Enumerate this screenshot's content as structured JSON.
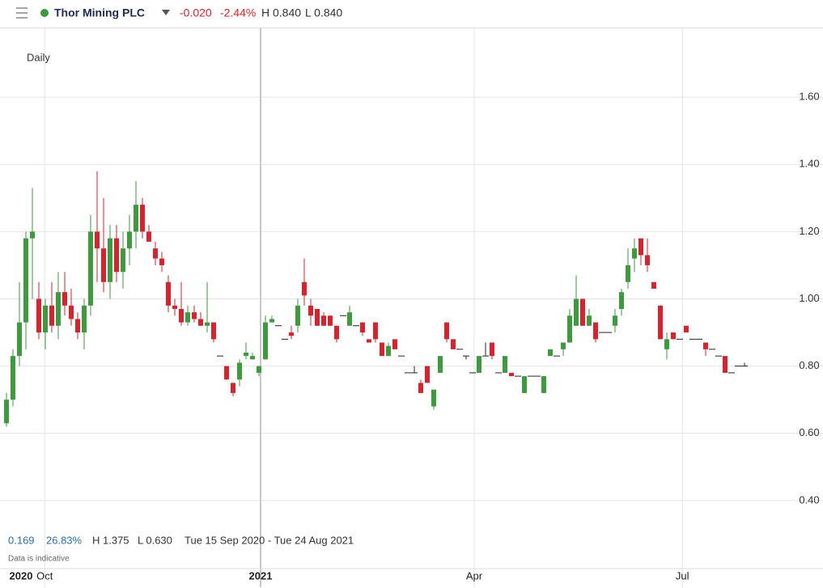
{
  "header": {
    "title": "Thor Mining PLC",
    "change": "-0.020",
    "change_pct": "-2.44%",
    "high": "H 0.840",
    "low": "L 0.840"
  },
  "stats": {
    "change": "0.169",
    "change_pct": "26.83%",
    "high": "H 1.375",
    "low": "L 0.630",
    "range": "Tue 15 Sep 2020 - Tue 24 Aug 2021",
    "note": "Data is indicative"
  },
  "chart_data": {
    "type": "candlestick",
    "interval": "Daily",
    "up_color": "#3d9a3d",
    "down_color": "#d9222e",
    "flat_color": "#222222",
    "ylim": [
      0.2,
      1.8
    ],
    "yticks": [
      {
        "value": 0.4,
        "label": "0.40"
      },
      {
        "value": 0.6,
        "label": "0.60"
      },
      {
        "value": 0.8,
        "label": "0.80"
      },
      {
        "value": 1.0,
        "label": "1.00"
      },
      {
        "value": 1.2,
        "label": "1.20"
      },
      {
        "value": 1.4,
        "label": "1.40"
      },
      {
        "value": 1.6,
        "label": "1.60"
      }
    ],
    "xlim": [
      -1,
      125.5
    ],
    "xticks": [
      {
        "value": 2.25,
        "label": "2020"
      },
      {
        "value": 5.9,
        "label": "Oct"
      },
      {
        "value": 39.25,
        "label": "2021"
      },
      {
        "value": 72.25,
        "label": "Apr"
      },
      {
        "value": 104.4,
        "label": "Jul"
      }
    ],
    "grid": true,
    "candles": [
      [
        0.63,
        0.72,
        0.62,
        0.7
      ],
      [
        0.7,
        0.85,
        0.68,
        0.83
      ],
      [
        0.83,
        1.05,
        0.8,
        0.93
      ],
      [
        0.93,
        1.2,
        0.85,
        1.18
      ],
      [
        1.18,
        1.33,
        1.0,
        1.2
      ],
      [
        1.0,
        1.05,
        0.88,
        0.9
      ],
      [
        0.9,
        1.0,
        0.85,
        0.98
      ],
      [
        0.98,
        1.05,
        0.9,
        0.92
      ],
      [
        0.92,
        1.08,
        0.88,
        1.02
      ],
      [
        1.02,
        1.08,
        0.95,
        0.98
      ],
      [
        0.98,
        1.03,
        0.92,
        0.94
      ],
      [
        0.94,
        0.96,
        0.88,
        0.9
      ],
      [
        0.9,
        1.0,
        0.85,
        0.98
      ],
      [
        0.98,
        1.25,
        0.95,
        1.2
      ],
      [
        1.2,
        1.38,
        1.05,
        1.15
      ],
      [
        1.15,
        1.3,
        1.02,
        1.05
      ],
      [
        1.05,
        1.22,
        1.0,
        1.18
      ],
      [
        1.18,
        1.22,
        1.05,
        1.08
      ],
      [
        1.08,
        1.2,
        1.03,
        1.15
      ],
      [
        1.15,
        1.25,
        1.1,
        1.2
      ],
      [
        1.2,
        1.35,
        1.15,
        1.28
      ],
      [
        1.28,
        1.3,
        1.18,
        1.2
      ],
      [
        1.2,
        1.22,
        1.17,
        1.17
      ],
      [
        1.15,
        1.17,
        1.1,
        1.12
      ],
      [
        1.12,
        1.14,
        1.08,
        1.1
      ],
      [
        1.05,
        1.07,
        0.96,
        0.98
      ],
      [
        0.98,
        1.0,
        0.95,
        0.97
      ],
      [
        0.97,
        1.05,
        0.92,
        0.93
      ],
      [
        0.93,
        0.98,
        0.92,
        0.96
      ],
      [
        0.96,
        0.98,
        0.93,
        0.94
      ],
      [
        0.94,
        0.96,
        0.92,
        0.92
      ],
      [
        0.92,
        1.05,
        0.9,
        0.93
      ],
      [
        0.93,
        0.93,
        0.87,
        0.88
      ],
      [
        0.83,
        0.83,
        0.83,
        0.83
      ],
      [
        0.8,
        0.8,
        0.76,
        0.76
      ],
      [
        0.75,
        0.75,
        0.71,
        0.72
      ],
      [
        0.76,
        0.82,
        0.74,
        0.81
      ],
      [
        0.83,
        0.87,
        0.82,
        0.84
      ],
      [
        0.82,
        0.84,
        0.82,
        0.83
      ],
      [
        0.78,
        0.8,
        0.77,
        0.8
      ],
      [
        0.82,
        0.95,
        0.82,
        0.93
      ],
      [
        0.93,
        0.95,
        0.93,
        0.94
      ],
      [
        0.92,
        0.92,
        0.92,
        0.92
      ],
      [
        0.88,
        0.88,
        0.88,
        0.88
      ],
      [
        0.9,
        0.92,
        0.88,
        0.89
      ],
      [
        0.92,
        1.0,
        0.9,
        0.98
      ],
      [
        1.05,
        1.12,
        0.98,
        1.01
      ],
      [
        0.98,
        1.0,
        0.92,
        0.95
      ],
      [
        0.97,
        0.97,
        0.92,
        0.92
      ],
      [
        0.95,
        0.96,
        0.92,
        0.92
      ],
      [
        0.95,
        0.95,
        0.92,
        0.92
      ],
      [
        0.92,
        0.92,
        0.87,
        0.88
      ],
      [
        0.95,
        0.95,
        0.95,
        0.95
      ],
      [
        0.92,
        0.98,
        0.92,
        0.96
      ],
      [
        0.92,
        0.92,
        0.92,
        0.92
      ],
      [
        0.93,
        0.93,
        0.89,
        0.9
      ],
      [
        0.88,
        0.88,
        0.87,
        0.87
      ],
      [
        0.93,
        0.93,
        0.87,
        0.88
      ],
      [
        0.87,
        0.87,
        0.83,
        0.83
      ],
      [
        0.83,
        0.87,
        0.83,
        0.86
      ],
      [
        0.88,
        0.88,
        0.85,
        0.85
      ],
      [
        0.83,
        0.83,
        0.83,
        0.83
      ],
      [
        0.78,
        0.78,
        0.78,
        0.78
      ],
      [
        0.78,
        0.8,
        0.78,
        0.78
      ],
      [
        0.75,
        0.76,
        0.72,
        0.72
      ],
      [
        0.8,
        0.8,
        0.75,
        0.75
      ],
      [
        0.68,
        0.73,
        0.67,
        0.73
      ],
      [
        0.78,
        0.83,
        0.78,
        0.83
      ],
      [
        0.93,
        0.93,
        0.87,
        0.88
      ],
      [
        0.88,
        0.88,
        0.85,
        0.85
      ],
      [
        0.85,
        0.85,
        0.85,
        0.85
      ],
      [
        0.83,
        0.83,
        0.82,
        0.83
      ],
      [
        0.78,
        0.78,
        0.78,
        0.78
      ],
      [
        0.78,
        0.83,
        0.78,
        0.83
      ],
      [
        0.83,
        0.87,
        0.83,
        0.83
      ],
      [
        0.87,
        0.87,
        0.82,
        0.83
      ],
      [
        0.78,
        0.78,
        0.78,
        0.78
      ],
      [
        0.78,
        0.83,
        0.78,
        0.83
      ],
      [
        0.78,
        0.78,
        0.77,
        0.77
      ],
      [
        0.77,
        0.77,
        0.77,
        0.77
      ],
      [
        0.72,
        0.77,
        0.72,
        0.77
      ],
      [
        0.77,
        0.77,
        0.77,
        0.77
      ],
      [
        0.77,
        0.77,
        0.77,
        0.77
      ],
      [
        0.72,
        0.77,
        0.72,
        0.77
      ],
      [
        0.83,
        0.85,
        0.83,
        0.85
      ],
      [
        0.83,
        0.83,
        0.83,
        0.83
      ],
      [
        0.85,
        0.87,
        0.83,
        0.87
      ],
      [
        0.87,
        0.97,
        0.87,
        0.95
      ],
      [
        0.92,
        1.07,
        0.92,
        1.0
      ],
      [
        1.0,
        1.0,
        0.92,
        0.92
      ],
      [
        0.92,
        0.97,
        0.92,
        0.95
      ],
      [
        0.93,
        0.93,
        0.87,
        0.88
      ],
      [
        0.9,
        0.9,
        0.9,
        0.9
      ],
      [
        0.9,
        0.9,
        0.9,
        0.9
      ],
      [
        0.92,
        0.97,
        0.9,
        0.95
      ],
      [
        0.97,
        1.03,
        0.95,
        1.02
      ],
      [
        1.05,
        1.15,
        1.03,
        1.1
      ],
      [
        1.12,
        1.18,
        1.08,
        1.15
      ],
      [
        1.18,
        1.18,
        1.1,
        1.13
      ],
      [
        1.13,
        1.18,
        1.08,
        1.1
      ],
      [
        1.05,
        1.05,
        1.03,
        1.03
      ],
      [
        0.98,
        0.98,
        0.88,
        0.88
      ],
      [
        0.85,
        0.9,
        0.82,
        0.88
      ],
      [
        0.9,
        0.9,
        0.88,
        0.88
      ],
      [
        0.88,
        0.88,
        0.88,
        0.88
      ],
      [
        0.92,
        0.92,
        0.9,
        0.9
      ],
      [
        0.88,
        0.88,
        0.88,
        0.88
      ],
      [
        0.88,
        0.88,
        0.88,
        0.88
      ],
      [
        0.87,
        0.87,
        0.83,
        0.85
      ],
      [
        0.85,
        0.85,
        0.85,
        0.85
      ],
      [
        0.83,
        0.83,
        0.83,
        0.83
      ],
      [
        0.83,
        0.83,
        0.78,
        0.78
      ],
      [
        0.78,
        0.78,
        0.78,
        0.78
      ],
      [
        0.8,
        0.8,
        0.8,
        0.8
      ],
      [
        0.8,
        0.81,
        0.8,
        0.8
      ]
    ]
  }
}
